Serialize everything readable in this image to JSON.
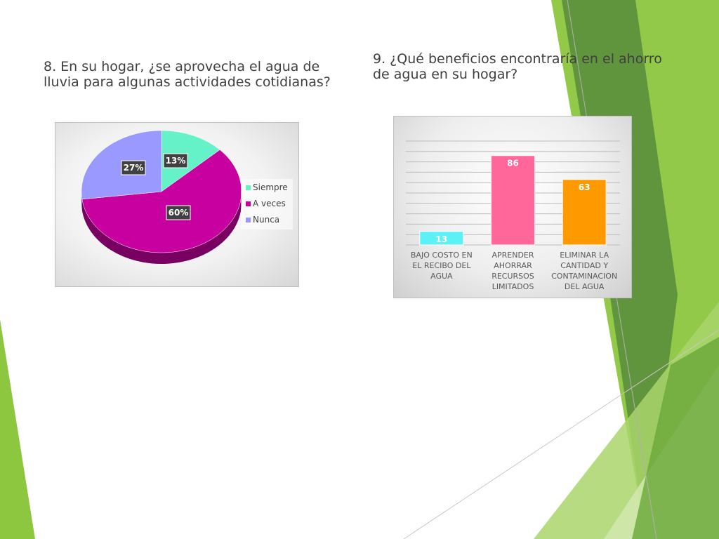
{
  "slide": {
    "q8_title": "8. En su hogar, ¿se aprovecha el agua de lluvia para algunas actividades cotidianas?",
    "q9_title": "9. ¿Qué beneficios encontraría en el ahorro de agua en su hogar?"
  },
  "chart_data": [
    {
      "type": "pie",
      "categories": [
        "Siempre",
        "A veces",
        "Nunca"
      ],
      "values": [
        13,
        60,
        27
      ],
      "labels": [
        "13%",
        "60%",
        "27%"
      ],
      "colors": [
        "#66f2c8",
        "#c800a0",
        "#9999ff"
      ],
      "legend_position": "right"
    },
    {
      "type": "bar",
      "categories": [
        [
          "BAJO COSTO EN",
          "EL RECIBO DEL",
          "AGUA"
        ],
        [
          "APRENDER",
          "AHORRAR",
          "RECURSOS",
          "LIMITADOS"
        ],
        [
          "ELIMINAR LA",
          "CANTIDAD Y",
          "CONTAMINACION",
          "DEL AGUA"
        ]
      ],
      "values": [
        13,
        86,
        63
      ],
      "colors": [
        "#5cf2f5",
        "#ff6699",
        "#ff9900"
      ],
      "ylim": [
        0,
        100
      ],
      "grid": true
    }
  ]
}
